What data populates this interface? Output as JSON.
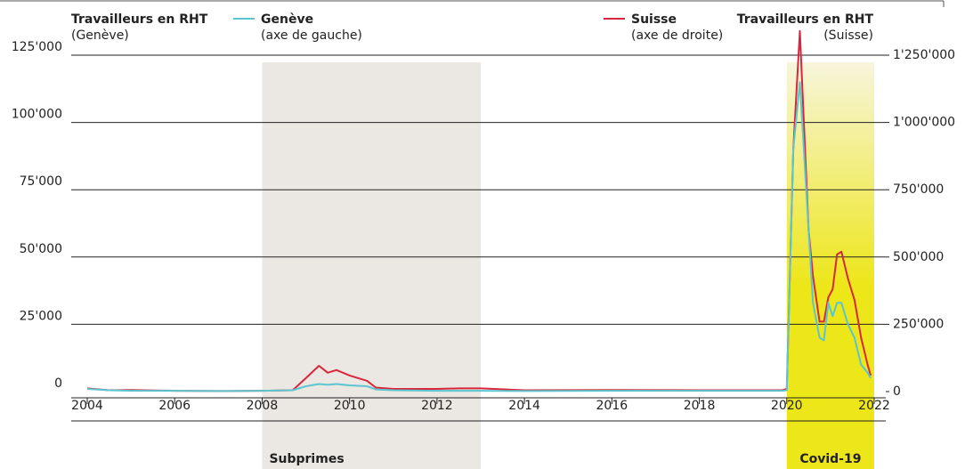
{
  "chart_data": {
    "type": "line",
    "y_label": "Travailleurs en RHT",
    "y_label_sub": "(Genève)",
    "y2_label": "Travailleurs en RHT",
    "y2_label_sub": "(Suisse)",
    "x": [
      2004,
      2004.5,
      2005,
      2006,
      2007,
      2008,
      2008.7,
      2009.0,
      2009.3,
      2009.5,
      2009.7,
      2010.0,
      2010.4,
      2010.6,
      2011,
      2012,
      2012.5,
      2013,
      2014,
      2016,
      2018,
      2019.9,
      2020.0,
      2020.15,
      2020.3,
      2020.5,
      2020.6,
      2020.75,
      2020.85,
      2020.95,
      2021.05,
      2021.15,
      2021.25,
      2021.4,
      2021.55,
      2021.7,
      2021.85,
      2021.92
    ],
    "series": [
      {
        "name": "Genève",
        "note": "(axe de gauche)",
        "color": "#5bc6cf",
        "axis": "y",
        "values": [
          1000,
          500,
          300,
          300,
          200,
          300,
          500,
          2000,
          2800,
          2500,
          2800,
          2300,
          2000,
          800,
          500,
          300,
          300,
          300,
          200,
          300,
          300,
          300,
          500,
          90000,
          115000,
          60000,
          33000,
          20000,
          19000,
          33000,
          28000,
          33000,
          33000,
          25000,
          20000,
          10000,
          7000,
          5000
        ]
      },
      {
        "name": "Suisse",
        "note": "(axe de droite)",
        "color": "#d9263d",
        "axis": "y2",
        "values": [
          12000,
          5000,
          6000,
          3000,
          2000,
          3000,
          5000,
          50000,
          96000,
          70000,
          80000,
          60000,
          40000,
          15000,
          10000,
          10000,
          12000,
          12000,
          5000,
          6000,
          5000,
          5000,
          10000,
          900000,
          1340000,
          600000,
          430000,
          260000,
          260000,
          350000,
          380000,
          510000,
          520000,
          420000,
          340000,
          200000,
          100000,
          60000
        ]
      }
    ],
    "periods": [
      {
        "label": "Subprimes",
        "start": 2008,
        "end": 2013,
        "color": "#ebe7e2"
      },
      {
        "label": "Covid-19",
        "start": 2020,
        "end": 2022,
        "color": "#ede619"
      }
    ],
    "xlim": [
      2004,
      2022
    ],
    "xticks": [
      2004,
      2006,
      2008,
      2010,
      2012,
      2014,
      2016,
      2018,
      2020,
      2022
    ],
    "ylim": [
      0,
      125000
    ],
    "yticks": [
      0,
      {
        "value": 25000,
        "label": "25'000"
      },
      {
        "value": 50000,
        "label": "50'000"
      },
      {
        "value": 75000,
        "label": "75'000"
      },
      {
        "value": 100000,
        "label": "100'000"
      },
      {
        "value": 125000,
        "label": "125'000"
      }
    ],
    "y2lim": [
      0,
      1250000
    ],
    "y2ticks": [
      0,
      {
        "value": 250000,
        "label": "250'000"
      },
      {
        "value": 500000,
        "label": "500'000"
      },
      {
        "value": 750000,
        "label": "750'000"
      },
      {
        "value": 1000000,
        "label": "1'000'000"
      },
      {
        "value": 1250000,
        "label": "1'250'000"
      }
    ],
    "grid": true
  }
}
